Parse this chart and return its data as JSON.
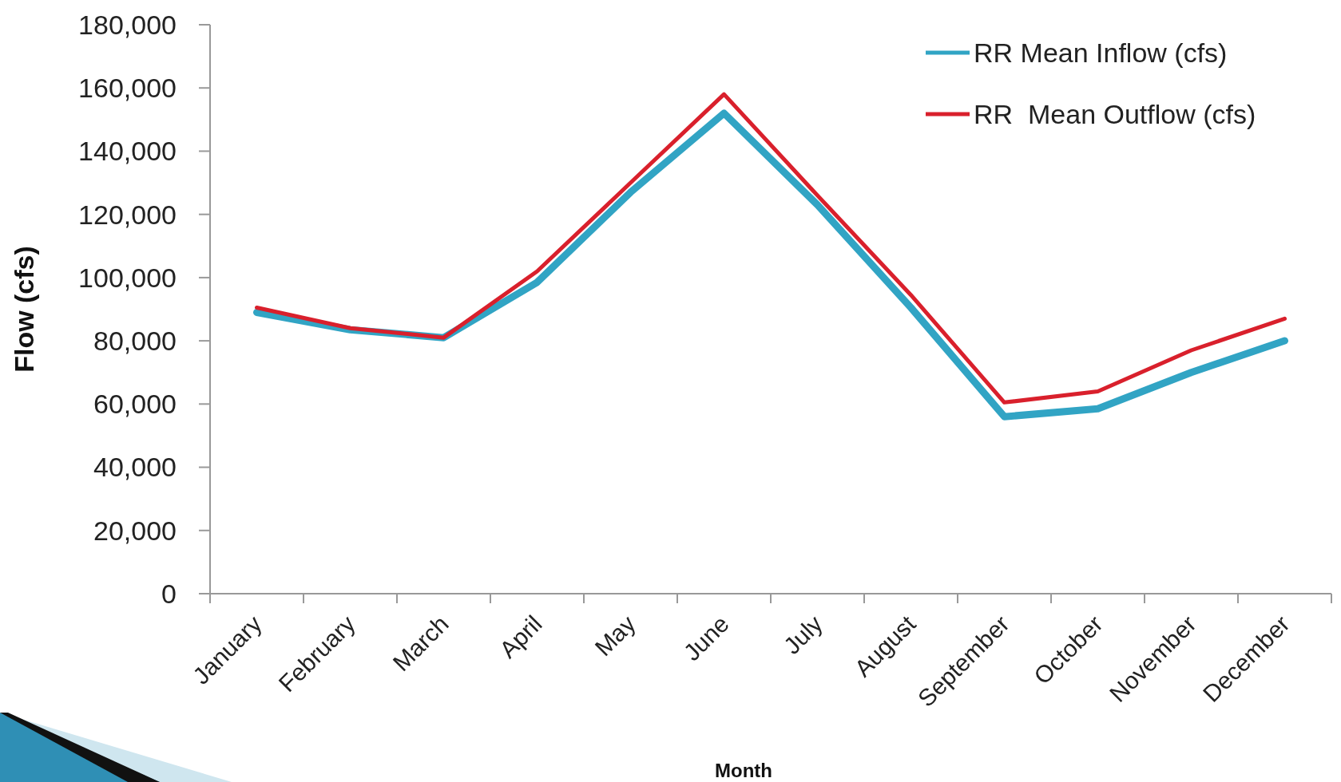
{
  "chart_data": {
    "type": "line",
    "xlabel": "Month",
    "ylabel": "Flow (cfs)",
    "categories": [
      "January",
      "February",
      "March",
      "April",
      "May",
      "June",
      "July",
      "August",
      "September",
      "October",
      "November",
      "December"
    ],
    "series": [
      {
        "name": "RR Mean Inflow (cfs)",
        "color": "#31a4c4",
        "values": [
          89000,
          83500,
          81000,
          98500,
          127000,
          152000,
          123000,
          90500,
          56000,
          58500,
          70000,
          80000
        ]
      },
      {
        "name": "RR  Mean Outflow (cfs)",
        "color": "#d9202c",
        "values": [
          90500,
          84000,
          81000,
          102000,
          130000,
          158000,
          126000,
          94500,
          60500,
          64000,
          77000,
          87000
        ]
      }
    ],
    "ylim": [
      0,
      180000
    ],
    "yticks": [
      {
        "value": 0,
        "label": "0"
      },
      {
        "value": 20000,
        "label": "20,000"
      },
      {
        "value": 40000,
        "label": "40,000"
      },
      {
        "value": 60000,
        "label": "60,000"
      },
      {
        "value": 80000,
        "label": "80,000"
      },
      {
        "value": 100000,
        "label": "100,000"
      },
      {
        "value": 120000,
        "label": "120,000"
      },
      {
        "value": 140000,
        "label": "140,000"
      },
      {
        "value": 160000,
        "label": "160,000"
      },
      {
        "value": 180000,
        "label": "180,000"
      }
    ],
    "grid": false,
    "legend": "top right",
    "marker": "none",
    "line_style": "solid"
  }
}
